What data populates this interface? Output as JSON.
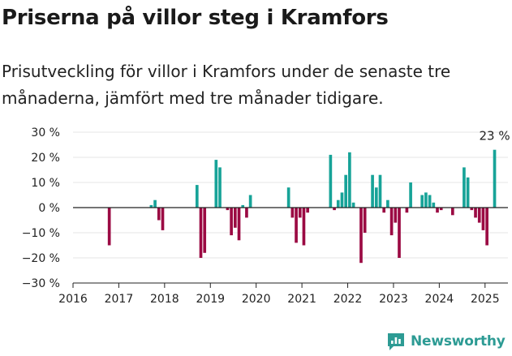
{
  "title": "Priserna på villor steg i Kramfors",
  "subtitle": "Prisutveckling för villor i Kramfors under de senaste tre månaderna, jämfört med tre månader tidigare.",
  "brand": {
    "name": "Newsworthy",
    "icon": "newsworthy-logo-icon",
    "color": "#2d9b94"
  },
  "chart_data": {
    "type": "bar",
    "title": "",
    "xlabel": "",
    "ylabel": "",
    "ylim": [
      -30,
      30
    ],
    "xlim": [
      "2016-01",
      "2025-07"
    ],
    "yticks": [
      {
        "value": 30,
        "label": "30 %"
      },
      {
        "value": 20,
        "label": "20 %"
      },
      {
        "value": 10,
        "label": "10 %"
      },
      {
        "value": 0,
        "label": "0 %"
      },
      {
        "value": -10,
        "label": "−10 %"
      },
      {
        "value": -20,
        "label": "−20 %"
      },
      {
        "value": -30,
        "label": "−30 %"
      }
    ],
    "xticks": [
      "2016",
      "2017",
      "2018",
      "2019",
      "2020",
      "2021",
      "2022",
      "2023",
      "2024",
      "2025"
    ],
    "grid": true,
    "colors": {
      "positive": "#17a398",
      "negative": "#9b0a43"
    },
    "annotation": {
      "x": "2025-03",
      "value": 23,
      "label": "23 %"
    },
    "points": [
      {
        "x": "2016-10",
        "value": -15
      },
      {
        "x": "2017-09",
        "value": 1
      },
      {
        "x": "2017-10",
        "value": 3
      },
      {
        "x": "2017-11",
        "value": -5
      },
      {
        "x": "2017-12",
        "value": -9
      },
      {
        "x": "2018-09",
        "value": 9
      },
      {
        "x": "2018-10",
        "value": -20
      },
      {
        "x": "2018-11",
        "value": -18
      },
      {
        "x": "2019-02",
        "value": 19
      },
      {
        "x": "2019-03",
        "value": 16
      },
      {
        "x": "2019-05",
        "value": -1
      },
      {
        "x": "2019-06",
        "value": -11
      },
      {
        "x": "2019-07",
        "value": -8
      },
      {
        "x": "2019-08",
        "value": -13
      },
      {
        "x": "2019-09",
        "value": 1
      },
      {
        "x": "2019-10",
        "value": -4
      },
      {
        "x": "2019-11",
        "value": 5
      },
      {
        "x": "2020-09",
        "value": 8
      },
      {
        "x": "2020-10",
        "value": -4
      },
      {
        "x": "2020-11",
        "value": -14
      },
      {
        "x": "2020-12",
        "value": -4
      },
      {
        "x": "2021-01",
        "value": -15
      },
      {
        "x": "2021-02",
        "value": -2
      },
      {
        "x": "2021-08",
        "value": 21
      },
      {
        "x": "2021-09",
        "value": -1
      },
      {
        "x": "2021-10",
        "value": 3
      },
      {
        "x": "2021-11",
        "value": 6
      },
      {
        "x": "2021-12",
        "value": 13
      },
      {
        "x": "2022-01",
        "value": 22
      },
      {
        "x": "2022-02",
        "value": 2
      },
      {
        "x": "2022-04",
        "value": -22
      },
      {
        "x": "2022-05",
        "value": -10
      },
      {
        "x": "2022-07",
        "value": 13
      },
      {
        "x": "2022-08",
        "value": 8
      },
      {
        "x": "2022-09",
        "value": 13
      },
      {
        "x": "2022-10",
        "value": -2
      },
      {
        "x": "2022-11",
        "value": 3
      },
      {
        "x": "2022-12",
        "value": -11
      },
      {
        "x": "2023-01",
        "value": -6
      },
      {
        "x": "2023-02",
        "value": -20
      },
      {
        "x": "2023-04",
        "value": -2
      },
      {
        "x": "2023-05",
        "value": 10
      },
      {
        "x": "2023-08",
        "value": 5
      },
      {
        "x": "2023-09",
        "value": 6
      },
      {
        "x": "2023-10",
        "value": 5
      },
      {
        "x": "2023-11",
        "value": 2
      },
      {
        "x": "2023-12",
        "value": -2
      },
      {
        "x": "2024-01",
        "value": -1
      },
      {
        "x": "2024-04",
        "value": -3
      },
      {
        "x": "2024-07",
        "value": 16
      },
      {
        "x": "2024-08",
        "value": 12
      },
      {
        "x": "2024-09",
        "value": -1
      },
      {
        "x": "2024-10",
        "value": -4
      },
      {
        "x": "2024-11",
        "value": -6
      },
      {
        "x": "2024-12",
        "value": -9
      },
      {
        "x": "2025-01",
        "value": -15
      },
      {
        "x": "2025-03",
        "value": 23
      }
    ]
  }
}
